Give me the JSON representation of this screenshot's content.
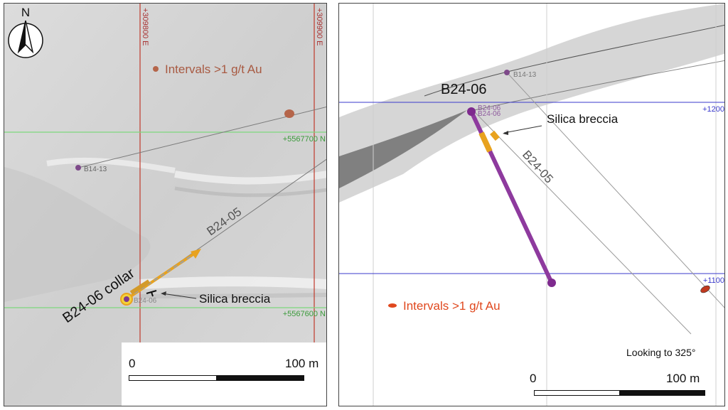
{
  "left_map": {
    "north_label": "N",
    "easting_labels": [
      "+309800 E",
      "+309900 E"
    ],
    "northing_labels": [
      "+5567700 N",
      "+5567600 N"
    ],
    "drillholes": {
      "b14_13_label": "B14-13",
      "b24_05_label": "B24-05",
      "b24_06_label": "B24-06",
      "collar_label": "B24-06 collar"
    },
    "annotation": "Silica breccia",
    "legend": "Intervals >1 g/t Au",
    "scale": {
      "start": "0",
      "end": "100 m"
    },
    "colors": {
      "grid_red": "#c0392b",
      "grid_green": "#7ed87e",
      "legend_dot": "#b5654a",
      "hole_gold": "#e8a21e"
    }
  },
  "right_section": {
    "hole_label": "B24-06",
    "small_labels": [
      "B14-13",
      "B24-06",
      "B24-06"
    ],
    "b24_05_label": "B24-05",
    "annotation": "Silica breccia",
    "elevation_labels": [
      "+1200",
      "+1100"
    ],
    "legend": "Intervals >1 g/t Au",
    "view_note": "Looking to 325°",
    "scale": {
      "start": "0",
      "end": "100 m"
    },
    "colors": {
      "elevation_blue": "#3a3acc",
      "hole_purple": "#8e3a9e",
      "legend_red": "#e0481e"
    }
  }
}
